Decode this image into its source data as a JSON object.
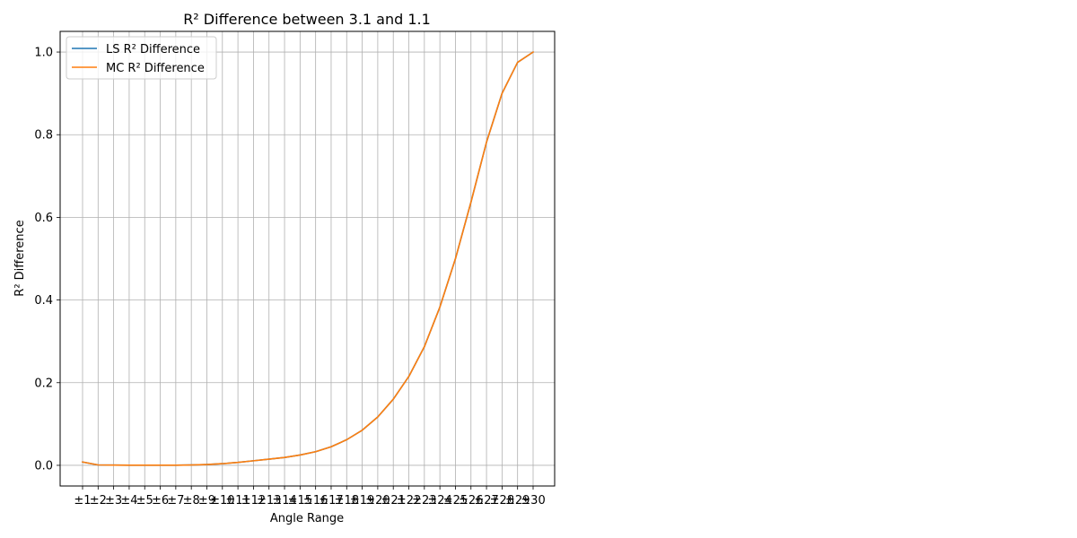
{
  "chart_data": {
    "type": "line",
    "title": "R² Difference between 3.1 and 1.1",
    "xlabel": "Angle Range",
    "ylabel": "R² Difference",
    "categories": [
      "±1",
      "±2",
      "±3",
      "±4",
      "±5",
      "±6",
      "±7",
      "±8",
      "±9",
      "±10",
      "±11",
      "±12",
      "±13",
      "±14",
      "±15",
      "±16",
      "±17",
      "±18",
      "±19",
      "±20",
      "±21",
      "±22",
      "±23",
      "±24",
      "±25",
      "±26",
      "±27",
      "±28",
      "±29",
      "±30"
    ],
    "ylim": [
      -0.05,
      1.05
    ],
    "yticks": [
      0.0,
      0.2,
      0.4,
      0.6,
      0.8,
      1.0
    ],
    "ytick_labels": [
      "0.0",
      "0.2",
      "0.4",
      "0.6",
      "0.8",
      "1.0"
    ],
    "grid": true,
    "legend_position": "top-left",
    "series": [
      {
        "name": "LS R² Difference",
        "color": "#1f77b4",
        "values": [
          0.008,
          0.001,
          0.0005,
          0.0003,
          0.0002,
          0.0002,
          0.0003,
          0.0008,
          0.002,
          0.004,
          0.007,
          0.011,
          0.015,
          0.019,
          0.025,
          0.033,
          0.045,
          0.062,
          0.085,
          0.117,
          0.16,
          0.215,
          0.287,
          0.383,
          0.5,
          0.637,
          0.782,
          0.9,
          0.975,
          1.0
        ]
      },
      {
        "name": "MC R² Difference",
        "color": "#ff7f0e",
        "values": [
          0.008,
          0.001,
          0.0005,
          0.0003,
          0.0002,
          0.0002,
          0.0003,
          0.0008,
          0.002,
          0.004,
          0.007,
          0.011,
          0.015,
          0.019,
          0.025,
          0.033,
          0.045,
          0.062,
          0.085,
          0.117,
          0.16,
          0.215,
          0.287,
          0.383,
          0.5,
          0.637,
          0.782,
          0.9,
          0.975,
          1.0
        ]
      }
    ]
  }
}
